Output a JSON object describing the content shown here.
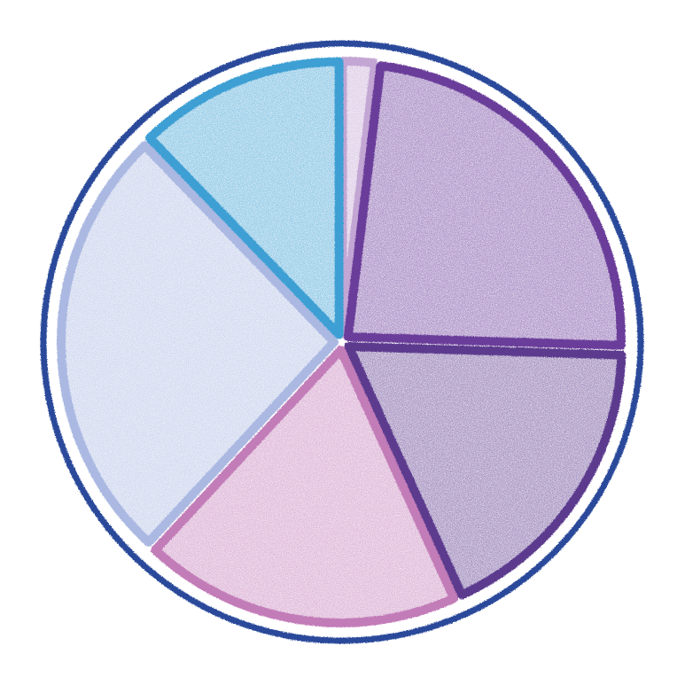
{
  "chart_data": {
    "type": "pie",
    "title": "",
    "legend": "none",
    "start_angle_deg": -90,
    "direction": "clockwise",
    "outer_ring_color": "#2a4a9a",
    "slices": [
      {
        "value": 1.9,
        "color": "#c3a6d4"
      },
      {
        "value": 23.6,
        "color": "#6a3d9a"
      },
      {
        "value": 17.7,
        "color": "#5b3a8e"
      },
      {
        "value": 18.7,
        "color": "#c27bb8"
      },
      {
        "value": 25.9,
        "color": "#aab8e2"
      },
      {
        "value": 12.2,
        "color": "#3d9fd3"
      }
    ]
  }
}
